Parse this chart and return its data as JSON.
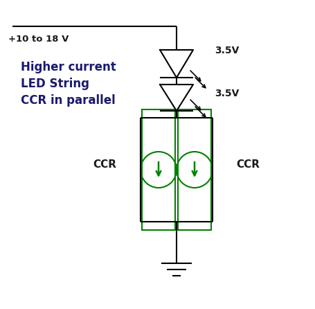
{
  "bg_color": "#ffffff",
  "line_color": "#000000",
  "green_color": "#008000",
  "text_color": "#1a1a1a",
  "navy_color": "#1a1a6e",
  "voltage_label1": "3.5V",
  "voltage_label2": "3.5V",
  "supply_label": "+10 to 18 V",
  "desc_line1": "Higher current",
  "desc_line2": "LED String",
  "desc_line3": "CCR in parallel",
  "ccr_label_left": "CCR",
  "ccr_label_right": "CCR",
  "figsize": [
    4.55,
    4.46
  ],
  "dpi": 100
}
